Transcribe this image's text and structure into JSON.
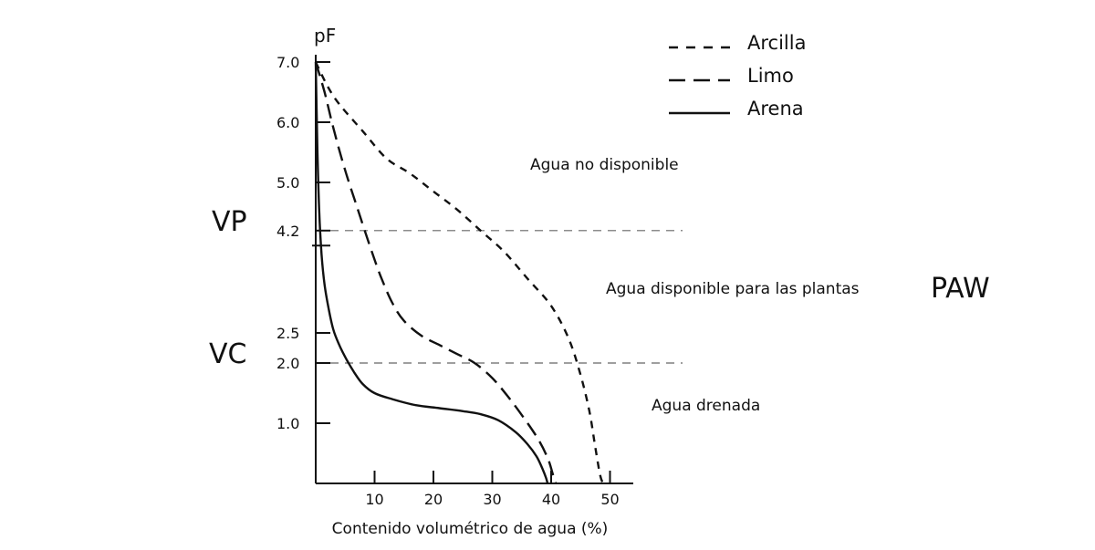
{
  "chart_data": {
    "type": "line",
    "ylabel": "pF",
    "xlabel": "Contenido volumétrico de agua (%)",
    "xlim": [
      0,
      52
    ],
    "ylim": [
      0,
      7.0
    ],
    "x_ticks": [
      10,
      20,
      30,
      40,
      50
    ],
    "y_ticks": [
      {
        "label": "7.0",
        "value": 7.0
      },
      {
        "label": "6.0",
        "value": 6.0
      },
      {
        "label": "5.0",
        "value": 5.0
      },
      {
        "label": "4.2",
        "value": 4.2
      },
      {
        "label": "2.5",
        "value": 2.5
      },
      {
        "label": "2.0",
        "value": 2.0
      },
      {
        "label": "1.0",
        "value": 1.0
      }
    ],
    "reference_lines": [
      {
        "label": "VP",
        "y": 4.2
      },
      {
        "label": "VC",
        "y": 2.0
      }
    ],
    "side_label": "PAW",
    "regions": [
      "Agua no disponible",
      "Agua disponible para las plantas",
      "Agua drenada"
    ],
    "legend_position": "top-right",
    "series": [
      {
        "name": "Arcilla",
        "dash": "short",
        "x": [
          0,
          2,
          4,
          8,
          12,
          16,
          20,
          24,
          28,
          32,
          36,
          40,
          43,
          45,
          46.5,
          47.5,
          48.3,
          48.8
        ],
        "y": [
          7.0,
          6.6,
          6.3,
          5.85,
          5.4,
          5.15,
          4.85,
          4.55,
          4.2,
          3.85,
          3.4,
          2.95,
          2.4,
          1.8,
          1.2,
          0.6,
          0.15,
          0
        ]
      },
      {
        "name": "Limo",
        "dash": "long",
        "x": [
          0,
          1.5,
          3,
          5,
          7,
          9,
          11,
          13,
          15,
          18,
          21,
          24,
          27,
          30,
          33,
          36,
          38,
          39.5,
          40.3,
          40.8
        ],
        "y": [
          7.0,
          6.5,
          5.9,
          5.2,
          4.6,
          4.0,
          3.45,
          3.0,
          2.7,
          2.45,
          2.3,
          2.15,
          2.0,
          1.75,
          1.4,
          1.0,
          0.7,
          0.4,
          0.15,
          0
        ]
      },
      {
        "name": "Arena",
        "dash": "solid",
        "x": [
          0,
          0.3,
          0.6,
          1.0,
          1.5,
          2.2,
          3.0,
          4.0,
          5.0,
          6.5,
          8.0,
          10,
          13,
          17,
          21,
          25,
          28,
          31,
          34,
          36,
          37.5,
          38.5,
          39.1,
          39.4
        ],
        "y": [
          7.0,
          5.5,
          4.5,
          3.8,
          3.3,
          2.9,
          2.55,
          2.3,
          2.1,
          1.85,
          1.65,
          1.5,
          1.4,
          1.3,
          1.25,
          1.2,
          1.15,
          1.05,
          0.85,
          0.65,
          0.45,
          0.25,
          0.1,
          0
        ]
      }
    ]
  }
}
